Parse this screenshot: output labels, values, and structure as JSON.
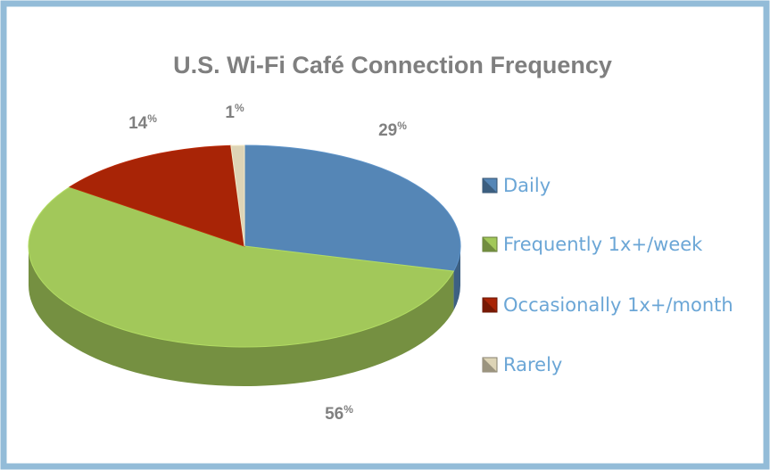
{
  "chart_data": {
    "type": "pie",
    "title": "U.S. Wi-Fi Café Connection Frequency",
    "categories": [
      "Daily",
      "Frequently 1x+/week",
      "Occasionally 1x+/month",
      "Rarely"
    ],
    "values": [
      29,
      56,
      14,
      1
    ],
    "value_labels": [
      "29%",
      "56%",
      "14%",
      "1%"
    ],
    "colors": [
      "#5586b6",
      "#a2c85a",
      "#a82406",
      "#ddd4b6"
    ],
    "legend": "right"
  }
}
